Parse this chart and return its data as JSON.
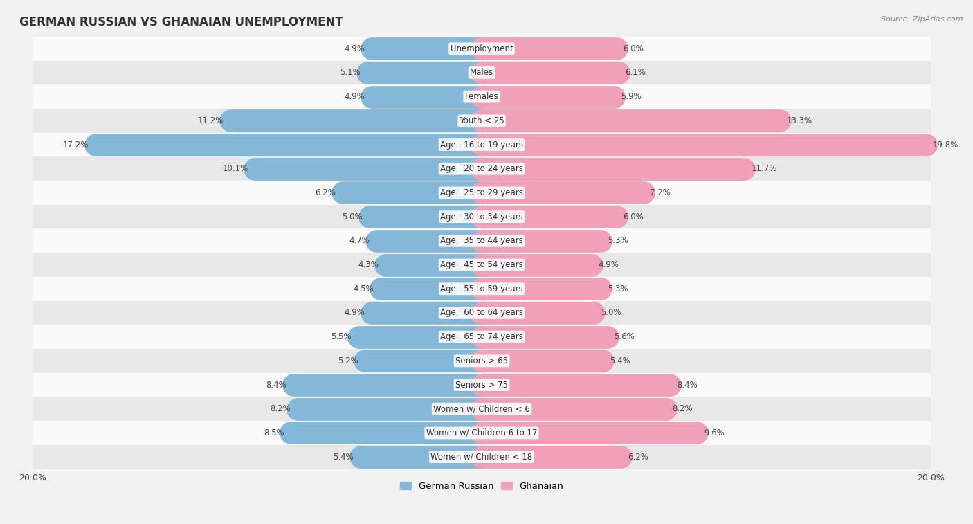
{
  "title": "GERMAN RUSSIAN VS GHANAIAN UNEMPLOYMENT",
  "source": "Source: ZipAtlas.com",
  "categories": [
    "Unemployment",
    "Males",
    "Females",
    "Youth < 25",
    "Age | 16 to 19 years",
    "Age | 20 to 24 years",
    "Age | 25 to 29 years",
    "Age | 30 to 34 years",
    "Age | 35 to 44 years",
    "Age | 45 to 54 years",
    "Age | 55 to 59 years",
    "Age | 60 to 64 years",
    "Age | 65 to 74 years",
    "Seniors > 65",
    "Seniors > 75",
    "Women w/ Children < 6",
    "Women w/ Children 6 to 17",
    "Women w/ Children < 18"
  ],
  "german_russian": [
    4.9,
    5.1,
    4.9,
    11.2,
    17.2,
    10.1,
    6.2,
    5.0,
    4.7,
    4.3,
    4.5,
    4.9,
    5.5,
    5.2,
    8.4,
    8.2,
    8.5,
    5.4
  ],
  "ghanaian": [
    6.0,
    6.1,
    5.9,
    13.3,
    19.8,
    11.7,
    7.2,
    6.0,
    5.3,
    4.9,
    5.3,
    5.0,
    5.6,
    5.4,
    8.4,
    8.2,
    9.6,
    6.2
  ],
  "german_russian_color": "#85b8d8",
  "ghanaian_color": "#f0a0b8",
  "background_color": "#f2f2f2",
  "row_light": "#fafafa",
  "row_dark": "#e8e8e8",
  "max_val": 20.0,
  "label_fontsize": 8.5,
  "title_fontsize": 12,
  "legend_fontsize": 9.5
}
